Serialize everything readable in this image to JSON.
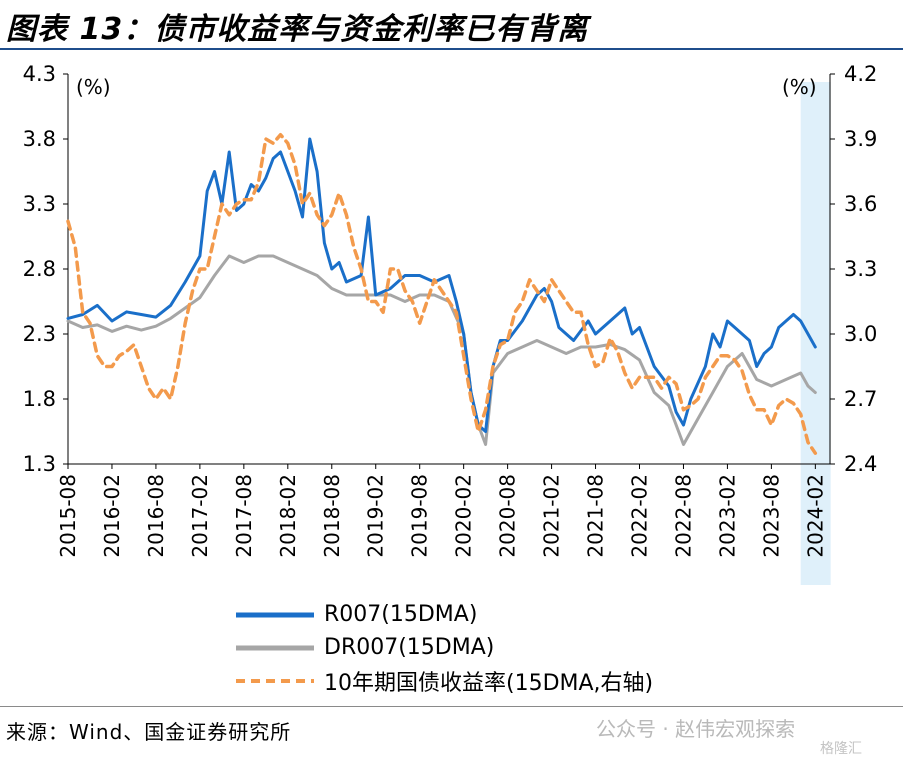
{
  "page": {
    "title": "图表 13：债市收益率与资金利率已有背离",
    "source": "来源：Wind、国金证券研究所",
    "watermark": "公众号 · 赵伟宏观探索",
    "watermark_sub": "格隆汇"
  },
  "chart_data": {
    "type": "line",
    "x_tick_labels": [
      "2015-08",
      "2016-02",
      "2016-08",
      "2017-02",
      "2017-08",
      "2018-02",
      "2018-08",
      "2019-02",
      "2019-08",
      "2020-02",
      "2020-08",
      "2021-02",
      "2021-08",
      "2022-02",
      "2022-08",
      "2023-02",
      "2023-08",
      "2024-02"
    ],
    "y_left": {
      "unit_label": "(%)",
      "ylim": [
        1.3,
        4.3
      ],
      "ticks": [
        "4.3",
        "3.8",
        "3.3",
        "2.8",
        "2.3",
        "1.8",
        "1.3"
      ]
    },
    "y_right": {
      "unit_label": "(%)",
      "ylim": [
        2.4,
        4.2
      ],
      "ticks": [
        "4.2",
        "3.9",
        "3.6",
        "3.3",
        "3.0",
        "2.7",
        "2.4"
      ]
    },
    "highlight": {
      "from": "2023-12",
      "to": "2024-03",
      "color": "#dff0fa"
    },
    "grid": false,
    "legend_position": "bottom",
    "series": [
      {
        "name": "R007(15DMA)",
        "axis": "left",
        "color": "#1a6fc9",
        "style": "solid",
        "points": [
          [
            "2015-08",
            2.42
          ],
          [
            "2015-10",
            2.45
          ],
          [
            "2015-12",
            2.52
          ],
          [
            "2016-02",
            2.4
          ],
          [
            "2016-04",
            2.47
          ],
          [
            "2016-06",
            2.45
          ],
          [
            "2016-08",
            2.43
          ],
          [
            "2016-10",
            2.52
          ],
          [
            "2016-12",
            2.7
          ],
          [
            "2017-02",
            2.9
          ],
          [
            "2017-03",
            3.4
          ],
          [
            "2017-04",
            3.55
          ],
          [
            "2017-05",
            3.3
          ],
          [
            "2017-06",
            3.7
          ],
          [
            "2017-07",
            3.25
          ],
          [
            "2017-08",
            3.3
          ],
          [
            "2017-09",
            3.45
          ],
          [
            "2017-10",
            3.4
          ],
          [
            "2017-11",
            3.5
          ],
          [
            "2017-12",
            3.65
          ],
          [
            "2018-01",
            3.7
          ],
          [
            "2018-02",
            3.55
          ],
          [
            "2018-03",
            3.4
          ],
          [
            "2018-04",
            3.2
          ],
          [
            "2018-05",
            3.8
          ],
          [
            "2018-06",
            3.55
          ],
          [
            "2018-07",
            3.0
          ],
          [
            "2018-08",
            2.8
          ],
          [
            "2018-09",
            2.85
          ],
          [
            "2018-10",
            2.7
          ],
          [
            "2018-12",
            2.75
          ],
          [
            "2019-01",
            3.2
          ],
          [
            "2019-02",
            2.6
          ],
          [
            "2019-04",
            2.65
          ],
          [
            "2019-06",
            2.75
          ],
          [
            "2019-08",
            2.75
          ],
          [
            "2019-10",
            2.7
          ],
          [
            "2019-12",
            2.75
          ],
          [
            "2020-01",
            2.55
          ],
          [
            "2020-02",
            2.3
          ],
          [
            "2020-03",
            1.85
          ],
          [
            "2020-04",
            1.6
          ],
          [
            "2020-05",
            1.55
          ],
          [
            "2020-06",
            2.05
          ],
          [
            "2020-07",
            2.25
          ],
          [
            "2020-08",
            2.25
          ],
          [
            "2020-10",
            2.4
          ],
          [
            "2020-12",
            2.6
          ],
          [
            "2021-01",
            2.65
          ],
          [
            "2021-02",
            2.55
          ],
          [
            "2021-03",
            2.35
          ],
          [
            "2021-05",
            2.25
          ],
          [
            "2021-07",
            2.4
          ],
          [
            "2021-08",
            2.3
          ],
          [
            "2021-10",
            2.4
          ],
          [
            "2021-12",
            2.5
          ],
          [
            "2022-01",
            2.3
          ],
          [
            "2022-02",
            2.35
          ],
          [
            "2022-04",
            2.05
          ],
          [
            "2022-06",
            1.9
          ],
          [
            "2022-07",
            1.7
          ],
          [
            "2022-08",
            1.6
          ],
          [
            "2022-09",
            1.8
          ],
          [
            "2022-11",
            2.05
          ],
          [
            "2022-12",
            2.3
          ],
          [
            "2023-01",
            2.2
          ],
          [
            "2023-02",
            2.4
          ],
          [
            "2023-03",
            2.35
          ],
          [
            "2023-04",
            2.3
          ],
          [
            "2023-05",
            2.25
          ],
          [
            "2023-06",
            2.05
          ],
          [
            "2023-07",
            2.15
          ],
          [
            "2023-08",
            2.2
          ],
          [
            "2023-09",
            2.35
          ],
          [
            "2023-10",
            2.4
          ],
          [
            "2023-11",
            2.45
          ],
          [
            "2023-12",
            2.4
          ],
          [
            "2024-01",
            2.3
          ],
          [
            "2024-02",
            2.2
          ]
        ]
      },
      {
        "name": "DR007(15DMA)",
        "axis": "left",
        "color": "#a6a6a6",
        "style": "solid",
        "points": [
          [
            "2015-08",
            2.4
          ],
          [
            "2015-10",
            2.35
          ],
          [
            "2015-12",
            2.37
          ],
          [
            "2016-02",
            2.32
          ],
          [
            "2016-04",
            2.36
          ],
          [
            "2016-06",
            2.33
          ],
          [
            "2016-08",
            2.36
          ],
          [
            "2016-10",
            2.42
          ],
          [
            "2016-12",
            2.5
          ],
          [
            "2017-02",
            2.58
          ],
          [
            "2017-04",
            2.75
          ],
          [
            "2017-06",
            2.9
          ],
          [
            "2017-08",
            2.85
          ],
          [
            "2017-10",
            2.9
          ],
          [
            "2017-12",
            2.9
          ],
          [
            "2018-02",
            2.85
          ],
          [
            "2018-04",
            2.8
          ],
          [
            "2018-06",
            2.75
          ],
          [
            "2018-08",
            2.65
          ],
          [
            "2018-10",
            2.6
          ],
          [
            "2018-12",
            2.6
          ],
          [
            "2019-02",
            2.6
          ],
          [
            "2019-04",
            2.6
          ],
          [
            "2019-06",
            2.55
          ],
          [
            "2019-08",
            2.6
          ],
          [
            "2019-10",
            2.6
          ],
          [
            "2019-12",
            2.55
          ],
          [
            "2020-02",
            2.3
          ],
          [
            "2020-03",
            1.85
          ],
          [
            "2020-04",
            1.6
          ],
          [
            "2020-05",
            1.45
          ],
          [
            "2020-06",
            2.0
          ],
          [
            "2020-08",
            2.15
          ],
          [
            "2020-10",
            2.2
          ],
          [
            "2020-12",
            2.25
          ],
          [
            "2021-02",
            2.2
          ],
          [
            "2021-04",
            2.15
          ],
          [
            "2021-06",
            2.2
          ],
          [
            "2021-08",
            2.2
          ],
          [
            "2021-10",
            2.22
          ],
          [
            "2021-12",
            2.18
          ],
          [
            "2022-02",
            2.1
          ],
          [
            "2022-04",
            1.85
          ],
          [
            "2022-06",
            1.75
          ],
          [
            "2022-08",
            1.45
          ],
          [
            "2022-10",
            1.65
          ],
          [
            "2022-12",
            1.85
          ],
          [
            "2023-02",
            2.05
          ],
          [
            "2023-04",
            2.15
          ],
          [
            "2023-06",
            1.95
          ],
          [
            "2023-08",
            1.9
          ],
          [
            "2023-10",
            1.95
          ],
          [
            "2023-12",
            2.0
          ],
          [
            "2024-01",
            1.9
          ],
          [
            "2024-02",
            1.85
          ]
        ]
      },
      {
        "name": "10年期国债收益率(15DMA,右轴)",
        "axis": "right",
        "color": "#f39a4c",
        "style": "dashed",
        "points": [
          [
            "2015-08",
            3.52
          ],
          [
            "2015-09",
            3.4
          ],
          [
            "2015-10",
            3.1
          ],
          [
            "2015-11",
            3.05
          ],
          [
            "2015-12",
            2.9
          ],
          [
            "2016-01",
            2.85
          ],
          [
            "2016-02",
            2.85
          ],
          [
            "2016-03",
            2.9
          ],
          [
            "2016-04",
            2.92
          ],
          [
            "2016-05",
            2.95
          ],
          [
            "2016-06",
            2.85
          ],
          [
            "2016-07",
            2.75
          ],
          [
            "2016-08",
            2.7
          ],
          [
            "2016-09",
            2.75
          ],
          [
            "2016-10",
            2.7
          ],
          [
            "2016-11",
            2.85
          ],
          [
            "2016-12",
            3.05
          ],
          [
            "2017-01",
            3.2
          ],
          [
            "2017-02",
            3.3
          ],
          [
            "2017-03",
            3.3
          ],
          [
            "2017-04",
            3.45
          ],
          [
            "2017-05",
            3.6
          ],
          [
            "2017-06",
            3.55
          ],
          [
            "2017-07",
            3.6
          ],
          [
            "2017-08",
            3.62
          ],
          [
            "2017-09",
            3.62
          ],
          [
            "2017-10",
            3.7
          ],
          [
            "2017-11",
            3.9
          ],
          [
            "2017-12",
            3.88
          ],
          [
            "2018-01",
            3.92
          ],
          [
            "2018-02",
            3.88
          ],
          [
            "2018-03",
            3.78
          ],
          [
            "2018-04",
            3.6
          ],
          [
            "2018-05",
            3.65
          ],
          [
            "2018-06",
            3.55
          ],
          [
            "2018-07",
            3.5
          ],
          [
            "2018-08",
            3.55
          ],
          [
            "2018-09",
            3.65
          ],
          [
            "2018-10",
            3.55
          ],
          [
            "2018-11",
            3.4
          ],
          [
            "2018-12",
            3.3
          ],
          [
            "2019-01",
            3.15
          ],
          [
            "2019-02",
            3.15
          ],
          [
            "2019-03",
            3.1
          ],
          [
            "2019-04",
            3.3
          ],
          [
            "2019-05",
            3.3
          ],
          [
            "2019-06",
            3.2
          ],
          [
            "2019-07",
            3.15
          ],
          [
            "2019-08",
            3.05
          ],
          [
            "2019-09",
            3.15
          ],
          [
            "2019-10",
            3.25
          ],
          [
            "2019-11",
            3.2
          ],
          [
            "2019-12",
            3.15
          ],
          [
            "2020-01",
            3.1
          ],
          [
            "2020-02",
            2.9
          ],
          [
            "2020-03",
            2.7
          ],
          [
            "2020-04",
            2.55
          ],
          [
            "2020-05",
            2.65
          ],
          [
            "2020-06",
            2.85
          ],
          [
            "2020-07",
            2.95
          ],
          [
            "2020-08",
            2.97
          ],
          [
            "2020-09",
            3.1
          ],
          [
            "2020-10",
            3.15
          ],
          [
            "2020-11",
            3.25
          ],
          [
            "2020-12",
            3.2
          ],
          [
            "2021-01",
            3.15
          ],
          [
            "2021-02",
            3.25
          ],
          [
            "2021-03",
            3.2
          ],
          [
            "2021-04",
            3.15
          ],
          [
            "2021-05",
            3.1
          ],
          [
            "2021-06",
            3.1
          ],
          [
            "2021-07",
            2.95
          ],
          [
            "2021-08",
            2.85
          ],
          [
            "2021-09",
            2.87
          ],
          [
            "2021-10",
            2.98
          ],
          [
            "2021-11",
            2.92
          ],
          [
            "2021-12",
            2.82
          ],
          [
            "2022-01",
            2.75
          ],
          [
            "2022-02",
            2.8
          ],
          [
            "2022-03",
            2.8
          ],
          [
            "2022-04",
            2.8
          ],
          [
            "2022-05",
            2.75
          ],
          [
            "2022-06",
            2.8
          ],
          [
            "2022-07",
            2.77
          ],
          [
            "2022-08",
            2.65
          ],
          [
            "2022-09",
            2.67
          ],
          [
            "2022-10",
            2.7
          ],
          [
            "2022-11",
            2.8
          ],
          [
            "2022-12",
            2.85
          ],
          [
            "2023-01",
            2.9
          ],
          [
            "2023-02",
            2.9
          ],
          [
            "2023-03",
            2.88
          ],
          [
            "2023-04",
            2.83
          ],
          [
            "2023-05",
            2.72
          ],
          [
            "2023-06",
            2.65
          ],
          [
            "2023-07",
            2.65
          ],
          [
            "2023-08",
            2.58
          ],
          [
            "2023-09",
            2.67
          ],
          [
            "2023-10",
            2.7
          ],
          [
            "2023-11",
            2.68
          ],
          [
            "2023-12",
            2.63
          ],
          [
            "2024-01",
            2.5
          ],
          [
            "2024-02",
            2.45
          ]
        ]
      }
    ]
  }
}
